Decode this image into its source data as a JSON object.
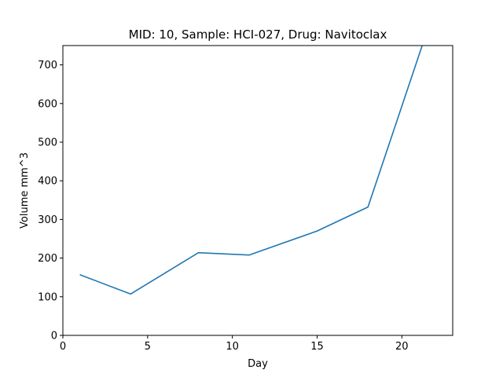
{
  "chart_data": {
    "type": "line",
    "title": "MID: 10, Sample: HCI-027, Drug: Navitoclax",
    "xlabel": "Day",
    "ylabel": "Volume mm^3",
    "xlim": [
      0,
      23
    ],
    "ylim": [
      0,
      750
    ],
    "xticks": [
      0,
      5,
      10,
      15,
      20
    ],
    "yticks": [
      0,
      100,
      200,
      300,
      400,
      500,
      600,
      700
    ],
    "grid": false,
    "series": [
      {
        "color": "#1f77b4",
        "x": [
          1,
          4,
          8,
          11,
          15,
          18,
          21.2
        ],
        "y": [
          157,
          107,
          214,
          208,
          270,
          332,
          750
        ]
      }
    ]
  }
}
